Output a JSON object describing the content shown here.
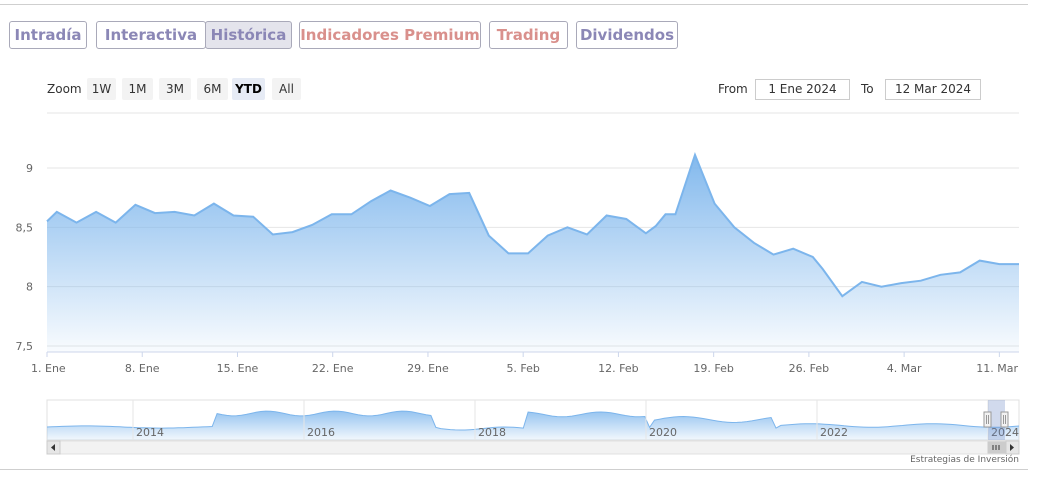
{
  "tabs": [
    {
      "label": "Intradía",
      "color": "#8b87b6"
    },
    {
      "label": "Interactiva",
      "color": "#8b87b6"
    },
    {
      "label": "Histórica",
      "color": "#8b87b6",
      "active": true
    },
    {
      "label": "Indicadores Premium",
      "color": "#d9908c"
    },
    {
      "label": "Trading",
      "color": "#d9908c"
    },
    {
      "label": "Dividendos",
      "color": "#8b87b6"
    }
  ],
  "zoom": {
    "label": "Zoom",
    "buttons": [
      "1W",
      "1M",
      "3M",
      "6M",
      "YTD",
      "All"
    ],
    "selected": "YTD"
  },
  "range": {
    "from_label": "From",
    "from_value": "1 Ene 2024",
    "to_label": "To",
    "to_value": "12 Mar 2024"
  },
  "chart_data": {
    "type": "area",
    "color": "#7cb5ec",
    "x_tick_labels": [
      "1. Ene",
      "8. Ene",
      "15. Ene",
      "22. Ene",
      "29. Ene",
      "5. Feb",
      "12. Feb",
      "19. Feb",
      "26. Feb",
      "4. Mar",
      "11. Mar"
    ],
    "y_tick_labels": [
      "7,5",
      "8",
      "8,5",
      "9"
    ],
    "ylim": [
      7.5,
      9.5
    ],
    "x_days_range": [
      0,
      71
    ],
    "x": [
      0,
      1,
      3,
      5,
      7,
      9,
      11,
      13,
      15,
      17,
      19,
      21,
      23,
      25,
      27,
      29,
      31,
      33,
      35,
      37,
      39,
      41,
      43,
      45,
      47,
      49,
      51,
      53,
      55,
      57,
      59,
      61,
      62,
      63,
      64,
      66,
      68,
      70,
      72,
      74,
      76,
      78,
      79,
      81,
      83,
      85,
      87,
      89,
      91,
      93,
      95,
      97,
      99
    ],
    "values": [
      8.55,
      8.63,
      8.54,
      8.63,
      8.54,
      8.69,
      8.62,
      8.63,
      8.6,
      8.7,
      8.6,
      8.59,
      8.44,
      8.46,
      8.52,
      8.61,
      8.61,
      8.72,
      8.81,
      8.75,
      8.68,
      8.78,
      8.79,
      8.43,
      8.28,
      8.28,
      8.43,
      8.5,
      8.44,
      8.6,
      8.57,
      8.45,
      8.51,
      8.61,
      8.61,
      9.11,
      8.7,
      8.5,
      8.37,
      8.27,
      8.32,
      8.25,
      8.15,
      7.92,
      8.04,
      8.0,
      8.03,
      8.05,
      8.1,
      8.12,
      8.22,
      8.19,
      8.19
    ],
    "navigator": {
      "x_tick_labels": [
        "2014",
        "2016",
        "2018",
        "2020",
        "2022",
        "2024"
      ]
    }
  },
  "credit": "Estrategias de Inversión"
}
